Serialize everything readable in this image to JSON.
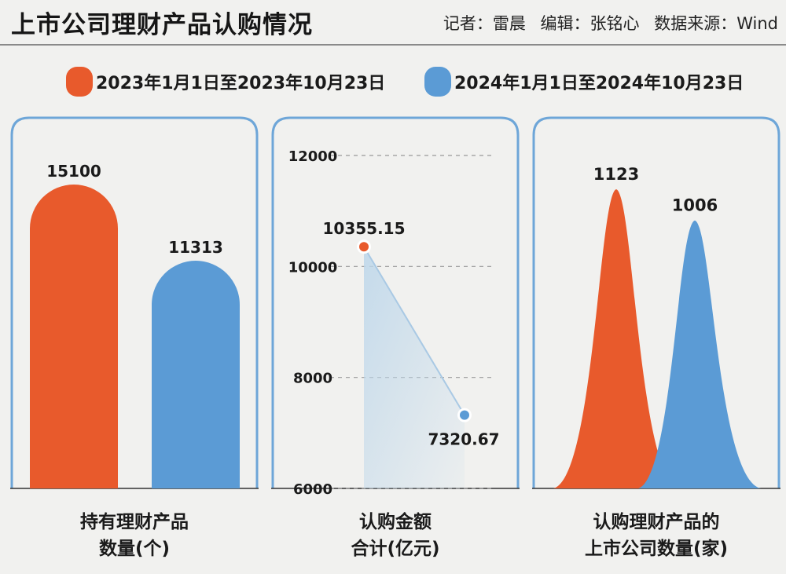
{
  "header": {
    "title": "上市公司理财产品认购情况",
    "reporter": "记者：雷晨",
    "editor": "编辑：张铭心",
    "source": "数据来源：Wind"
  },
  "legend": [
    {
      "label": "2023年1月1日至2023年10月23日",
      "color": "#e85a2c"
    },
    {
      "label": "2024年1月1日至2024年10月23日",
      "color": "#5b9bd5"
    }
  ],
  "colors": {
    "orange": "#e85a2c",
    "blue": "#5b9bd5",
    "panel_border": "#6ea6d8",
    "grid": "#999999"
  },
  "chart_data": [
    {
      "type": "bar",
      "categories": [
        "2023年1月1日至2023年10月23日",
        "2024年1月1日至2024年10月23日"
      ],
      "values": [
        15100,
        11313
      ],
      "labels": [
        "15100",
        "11313"
      ],
      "caption": [
        "持有理财产品",
        "数量(个)"
      ]
    },
    {
      "type": "line",
      "categories": [
        "2023年1月1日至2023年10月23日",
        "2024年1月1日至2024年10月23日"
      ],
      "values": [
        10355.15,
        7320.67
      ],
      "labels": [
        "10355.15",
        "7320.67"
      ],
      "ylim": [
        6000,
        12000
      ],
      "yticks": [
        "12000",
        "10000",
        "8000",
        "6000"
      ],
      "caption": [
        "认购金额",
        "合计(亿元)"
      ]
    },
    {
      "type": "area",
      "categories": [
        "2023年1月1日至2023年10月23日",
        "2024年1月1日至2024年10月23日"
      ],
      "values": [
        1123,
        1006
      ],
      "labels": [
        "1123",
        "1006"
      ],
      "caption": [
        "认购理财产品的",
        "上市公司数量(家)"
      ]
    }
  ]
}
